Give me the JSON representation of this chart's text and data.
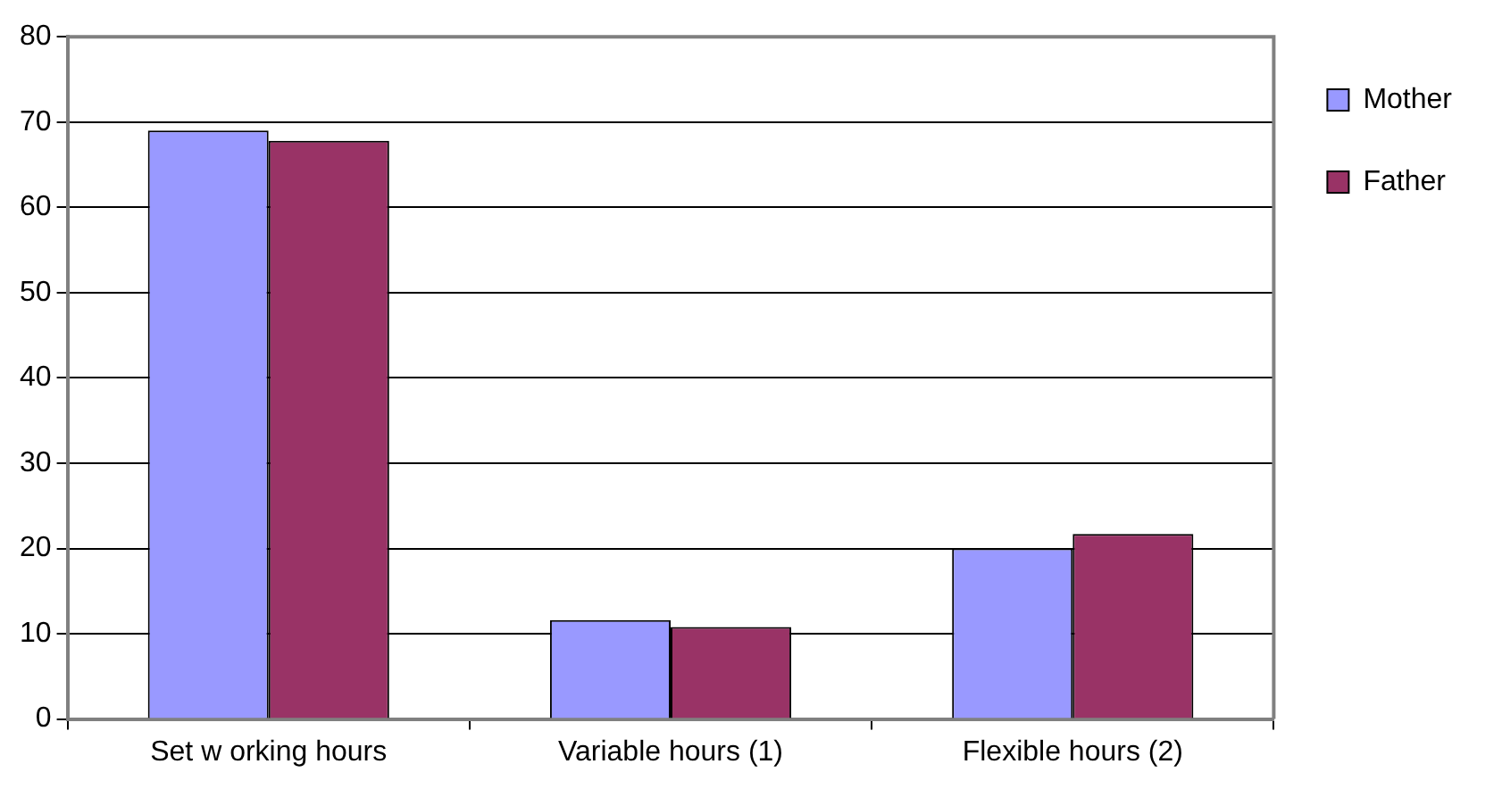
{
  "chart_data": {
    "type": "bar",
    "categories": [
      "Set w orking hours",
      "Variable hours (1)",
      "Flexible hours (2)"
    ],
    "series": [
      {
        "name": "Mother",
        "color": "#9999ff",
        "values": [
          69,
          11.6,
          20
        ]
      },
      {
        "name": "Father",
        "color": "#993366",
        "values": [
          67.8,
          10.8,
          21.7
        ]
      }
    ],
    "ylim": [
      0,
      80
    ],
    "yticks": [
      0,
      10,
      20,
      30,
      40,
      50,
      60,
      70,
      80
    ],
    "grid": "y",
    "legend": "right"
  }
}
